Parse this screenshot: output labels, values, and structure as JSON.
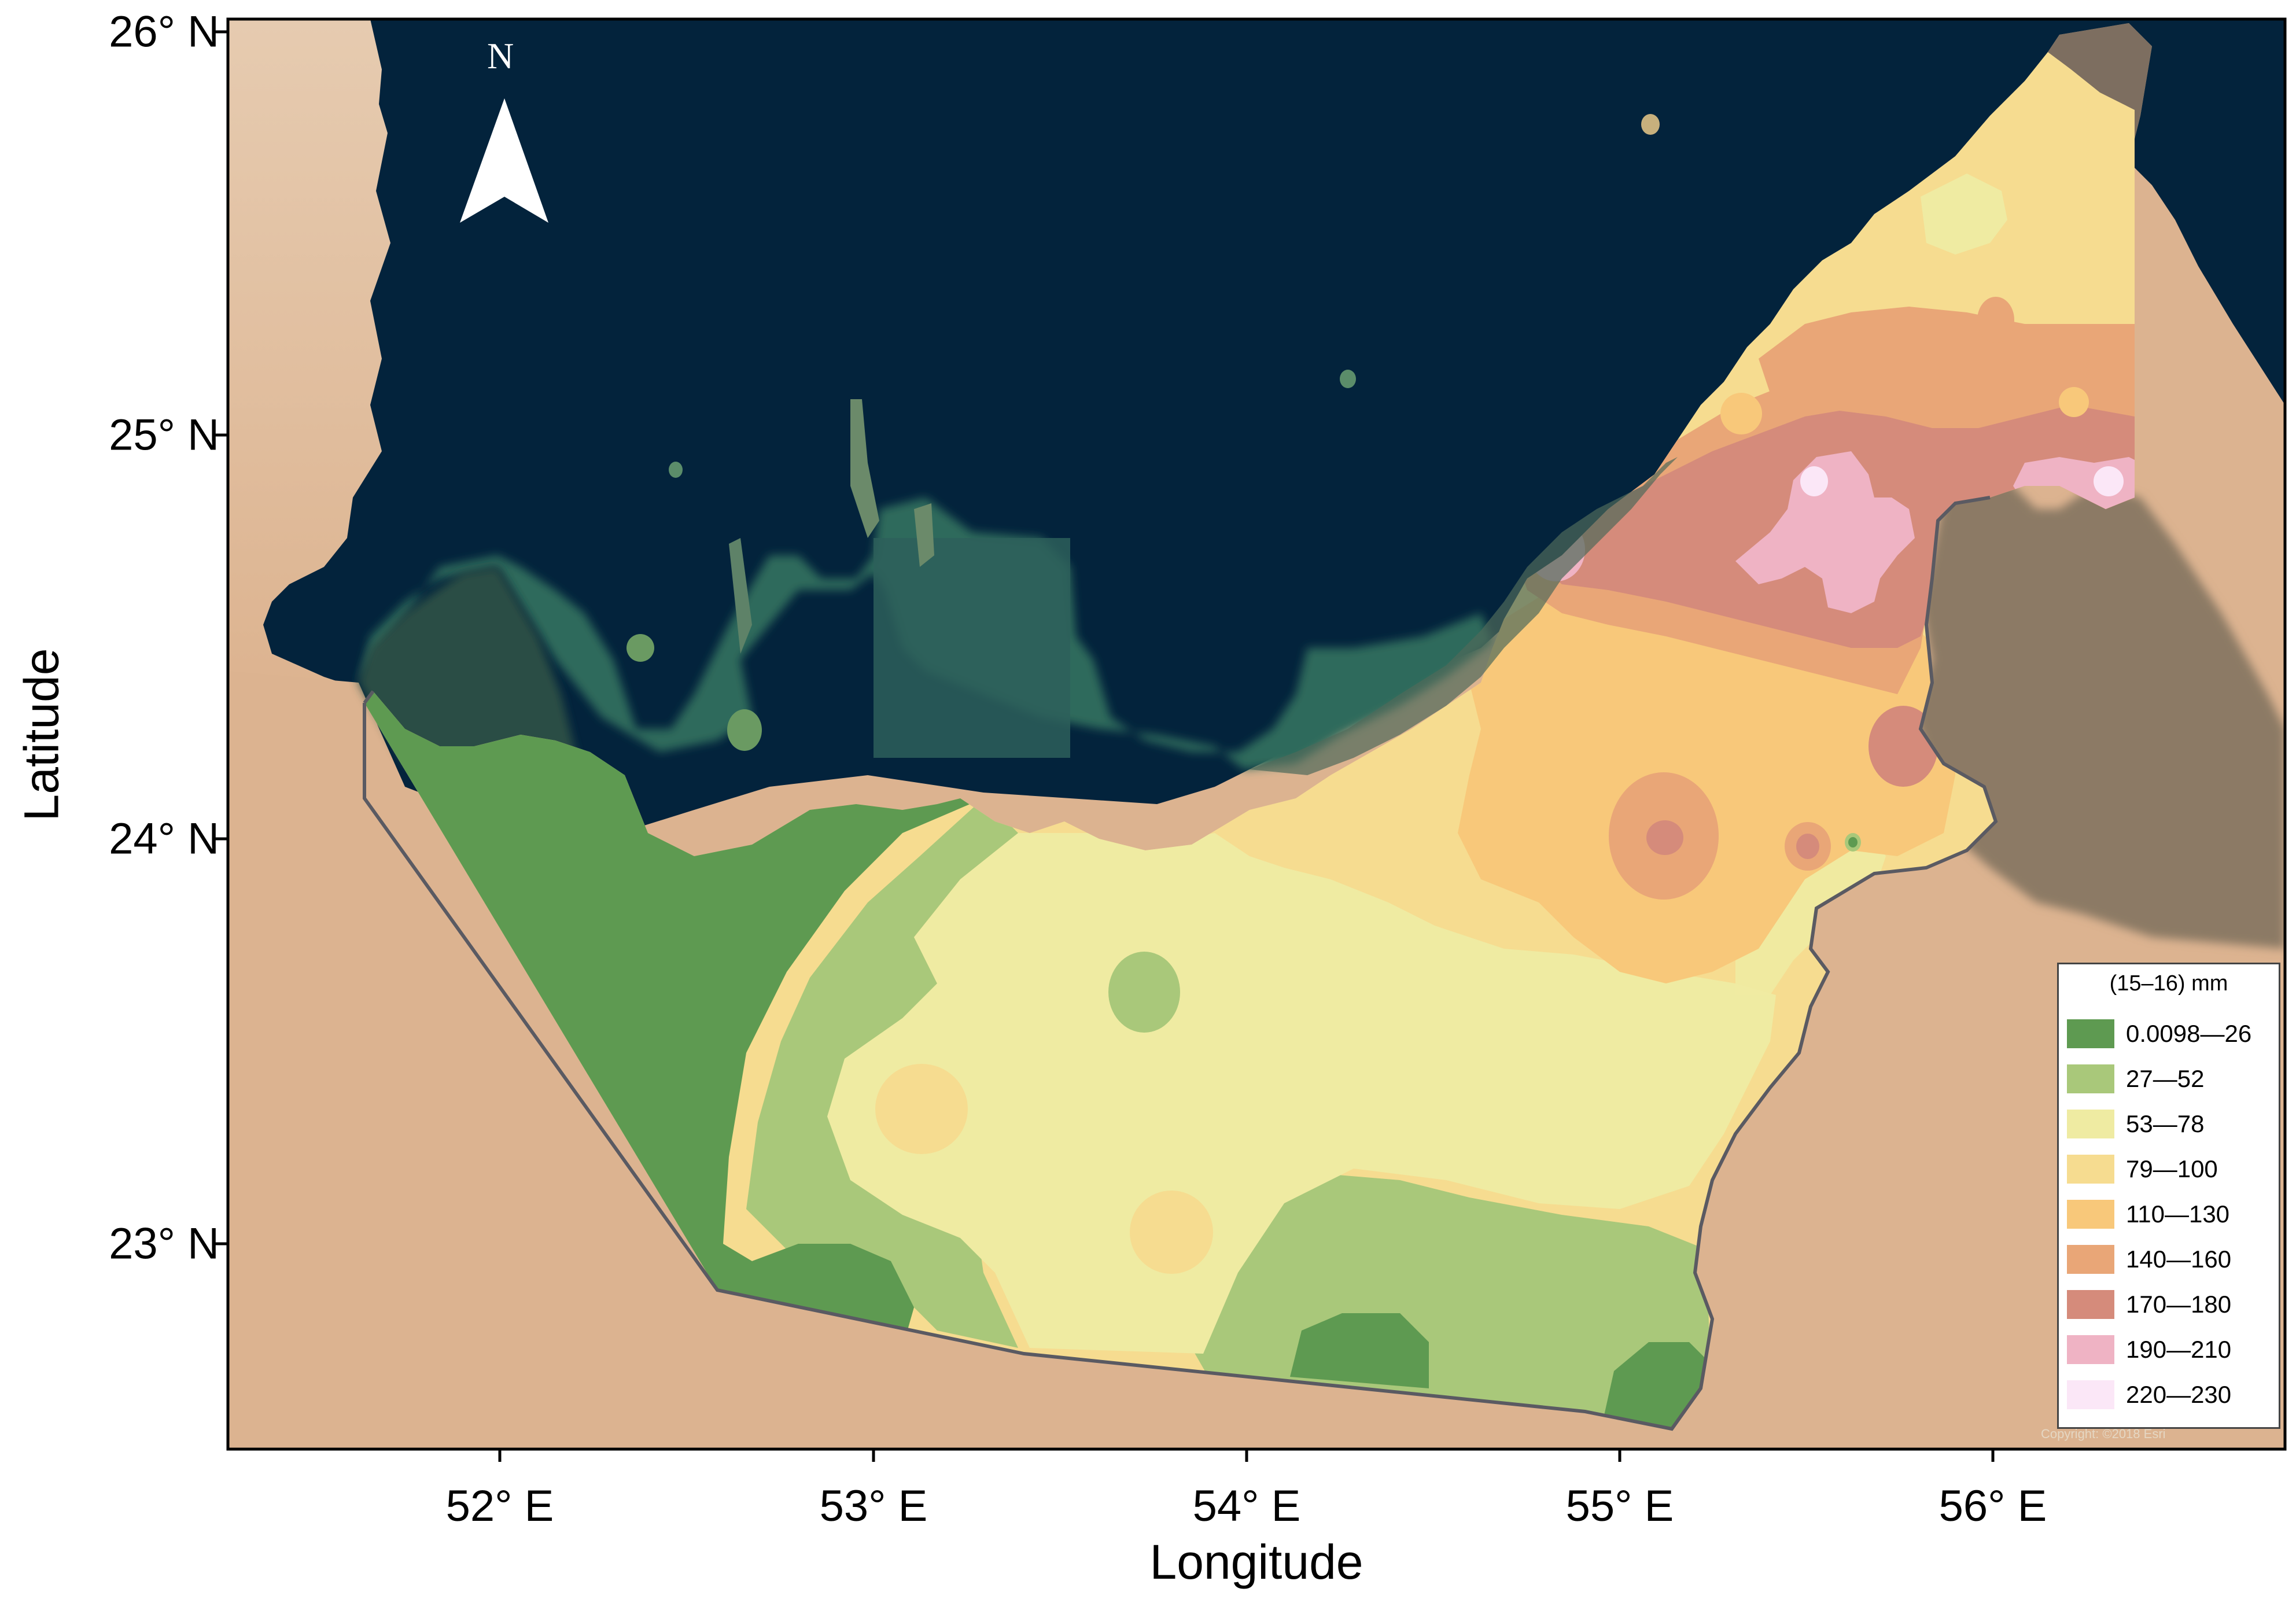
{
  "map": {
    "type": "choropleth",
    "region": "United Arab Emirates",
    "basemap": "satellite imagery",
    "north_arrow_label": "N",
    "x_axis": {
      "title": "Longitude",
      "ticks": [
        {
          "value": 52,
          "label": "52° E"
        },
        {
          "value": 53,
          "label": "53° E"
        },
        {
          "value": 54,
          "label": "54° E"
        },
        {
          "value": 55,
          "label": "55° E"
        },
        {
          "value": 56,
          "label": "56° E"
        }
      ]
    },
    "y_axis": {
      "title": "Latitude",
      "ticks": [
        {
          "value": 26,
          "label": "26° N"
        },
        {
          "value": 25,
          "label": "25° N"
        },
        {
          "value": 24,
          "label": "24° N"
        },
        {
          "value": 23,
          "label": "23° N"
        }
      ]
    },
    "legend": {
      "title": "(15–16) mm",
      "placement": "bottom-right",
      "classes": [
        {
          "label": "0.0098—26",
          "color": "#5e9a51"
        },
        {
          "label": "27—52",
          "color": "#a9c87a"
        },
        {
          "label": "53—78",
          "color": "#efeba2"
        },
        {
          "label": "79—100",
          "color": "#f6dc90"
        },
        {
          "label": "110—130",
          "color": "#f8c87a"
        },
        {
          "label": "140—160",
          "color": "#e9a677"
        },
        {
          "label": "170—180",
          "color": "#d58b7b"
        },
        {
          "label": "190—210",
          "color": "#efb3c4"
        },
        {
          "label": "220—230",
          "color": "#fbe7f7"
        }
      ]
    },
    "copyright_text": "Copyright: ©2018 Esri"
  },
  "colors": {
    "sea": "#03233c",
    "land_desert": "#dcb796",
    "land_desert_light": "#e8cfb6",
    "mountains": "#8a7560",
    "coastal_shallows": "#2e6a5f",
    "boundary": "#5a5a62"
  }
}
